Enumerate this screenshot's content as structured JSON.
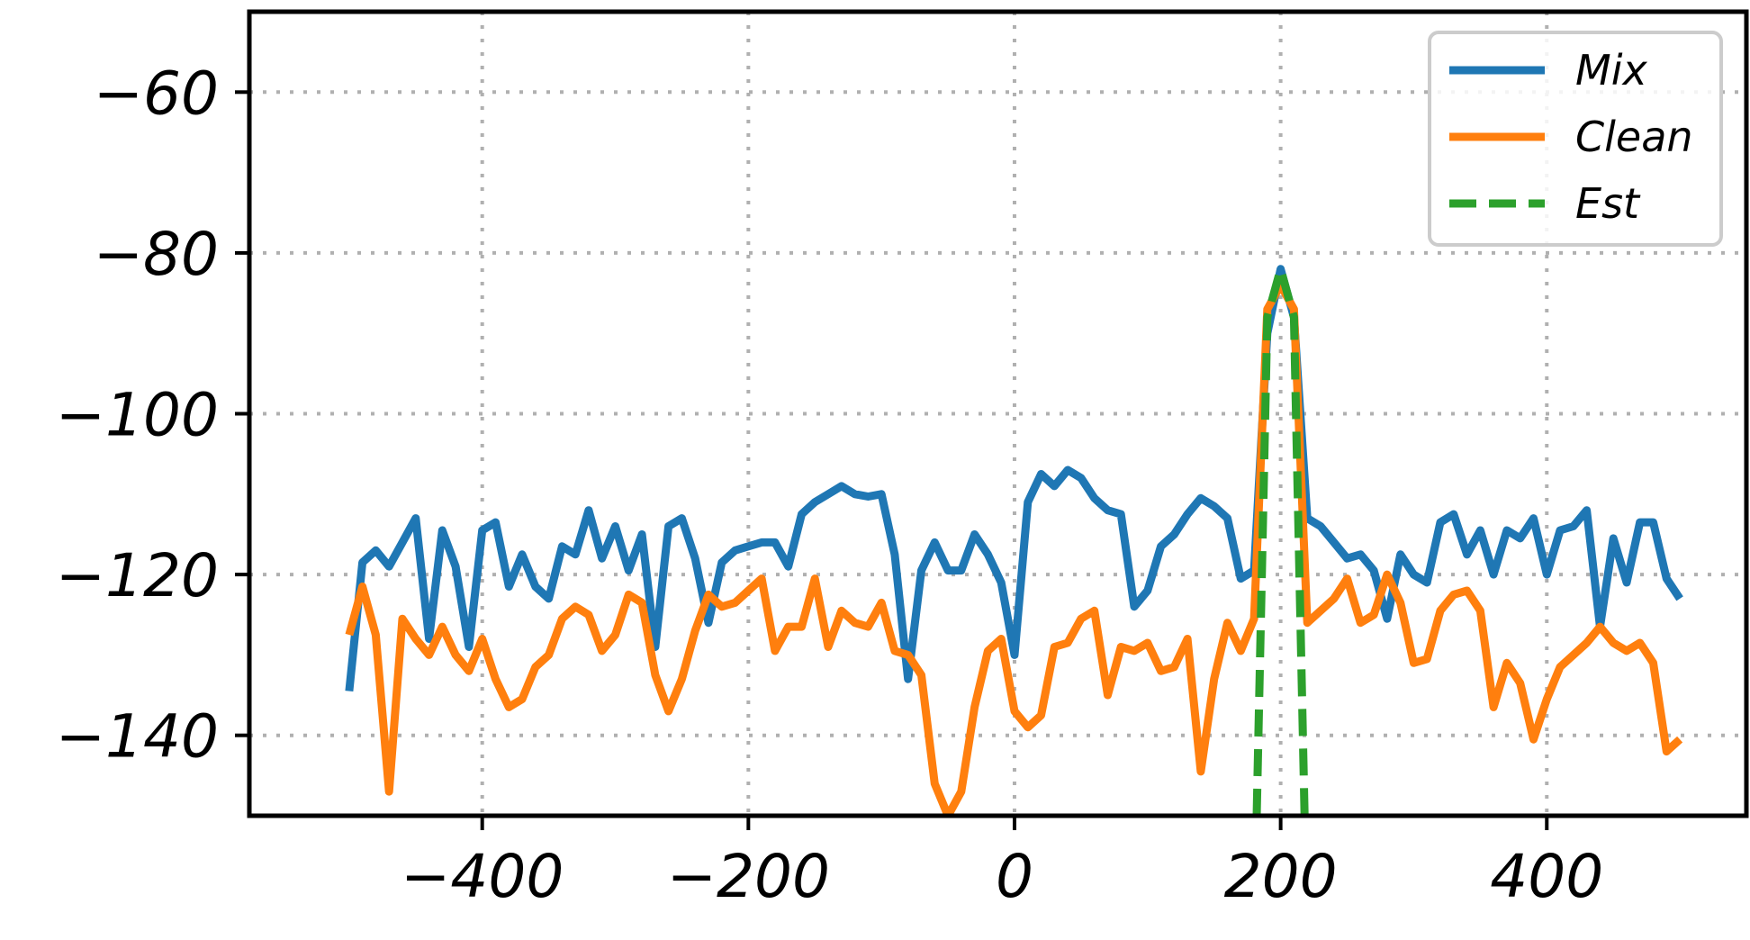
{
  "chart_data": {
    "type": "line",
    "title": "",
    "xlabel": "",
    "ylabel": "",
    "xlim": [
      -575,
      550
    ],
    "ylim": [
      -150,
      -50
    ],
    "xticks": [
      -400,
      -200,
      0,
      200,
      400
    ],
    "yticks": [
      -60,
      -80,
      -100,
      -120,
      -140
    ],
    "xtick_labels": [
      "−400",
      "−200",
      "0",
      "200",
      "400"
    ],
    "ytick_labels": [
      "−60",
      "−80",
      "−100",
      "−120",
      "−140"
    ],
    "grid": true,
    "legend": "top-right",
    "series": [
      {
        "name": "Mix",
        "color": "#1f77b4",
        "style": "solid",
        "points": [
          [
            -500,
            -134.5
          ],
          [
            -490,
            -118.5
          ],
          [
            -480,
            -117
          ],
          [
            -470,
            -119
          ],
          [
            -460,
            -116
          ],
          [
            -450,
            -113
          ],
          [
            -440,
            -128
          ],
          [
            -430,
            -114.5
          ],
          [
            -420,
            -119
          ],
          [
            -410,
            -129
          ],
          [
            -400,
            -114.5
          ],
          [
            -390,
            -113.5
          ],
          [
            -380,
            -121.5
          ],
          [
            -370,
            -117.5
          ],
          [
            -360,
            -121.5
          ],
          [
            -350,
            -123
          ],
          [
            -340,
            -116.5
          ],
          [
            -330,
            -117.5
          ],
          [
            -320,
            -112
          ],
          [
            -310,
            -118
          ],
          [
            -300,
            -114
          ],
          [
            -290,
            -119.5
          ],
          [
            -280,
            -115
          ],
          [
            -270,
            -129
          ],
          [
            -260,
            -114
          ],
          [
            -250,
            -113
          ],
          [
            -240,
            -118
          ],
          [
            -230,
            -126
          ],
          [
            -220,
            -118.5
          ],
          [
            -210,
            -117
          ],
          [
            -200,
            -116.5
          ],
          [
            -190,
            -116
          ],
          [
            -180,
            -116
          ],
          [
            -170,
            -119
          ],
          [
            -160,
            -112.5
          ],
          [
            -150,
            -111
          ],
          [
            -140,
            -110
          ],
          [
            -130,
            -109
          ],
          [
            -120,
            -110
          ],
          [
            -110,
            -110.3
          ],
          [
            -100,
            -110
          ],
          [
            -90,
            -117.5
          ],
          [
            -80,
            -133
          ],
          [
            -70,
            -119.5
          ],
          [
            -60,
            -116
          ],
          [
            -50,
            -119.5
          ],
          [
            -40,
            -119.5
          ],
          [
            -30,
            -115
          ],
          [
            -20,
            -117.5
          ],
          [
            -10,
            -121
          ],
          [
            0,
            -130
          ],
          [
            10,
            -111
          ],
          [
            20,
            -107.5
          ],
          [
            30,
            -109
          ],
          [
            40,
            -107
          ],
          [
            50,
            -108
          ],
          [
            60,
            -110.5
          ],
          [
            70,
            -112
          ],
          [
            80,
            -112.5
          ],
          [
            90,
            -124
          ],
          [
            100,
            -122
          ],
          [
            110,
            -116.5
          ],
          [
            120,
            -115
          ],
          [
            130,
            -112.5
          ],
          [
            140,
            -110.5
          ],
          [
            150,
            -111.5
          ],
          [
            160,
            -113
          ],
          [
            170,
            -120.5
          ],
          [
            180,
            -119.5
          ],
          [
            190,
            -90
          ],
          [
            200,
            -82
          ],
          [
            210,
            -88
          ],
          [
            220,
            -113
          ],
          [
            230,
            -114
          ],
          [
            240,
            -116
          ],
          [
            250,
            -118
          ],
          [
            260,
            -117.5
          ],
          [
            270,
            -119.5
          ],
          [
            280,
            -125.5
          ],
          [
            290,
            -117.5
          ],
          [
            300,
            -120
          ],
          [
            310,
            -121
          ],
          [
            320,
            -113.5
          ],
          [
            330,
            -112.5
          ],
          [
            340,
            -117.5
          ],
          [
            350,
            -114.5
          ],
          [
            360,
            -120
          ],
          [
            370,
            -114.5
          ],
          [
            380,
            -115.5
          ],
          [
            390,
            -113
          ],
          [
            400,
            -120
          ],
          [
            410,
            -114.5
          ],
          [
            420,
            -114
          ],
          [
            430,
            -112
          ],
          [
            440,
            -126.5
          ],
          [
            450,
            -115.5
          ],
          [
            460,
            -121
          ],
          [
            470,
            -113.5
          ],
          [
            480,
            -113.5
          ],
          [
            490,
            -120.5
          ],
          [
            500,
            -123
          ]
        ]
      },
      {
        "name": "Clean",
        "color": "#ff7f0e",
        "style": "solid",
        "points": [
          [
            -500,
            -127.5
          ],
          [
            -490,
            -121.5
          ],
          [
            -480,
            -127.5
          ],
          [
            -470,
            -147
          ],
          [
            -460,
            -125.5
          ],
          [
            -450,
            -128
          ],
          [
            -440,
            -130
          ],
          [
            -430,
            -126.5
          ],
          [
            -420,
            -130
          ],
          [
            -410,
            -132
          ],
          [
            -400,
            -128
          ],
          [
            -390,
            -133
          ],
          [
            -380,
            -136.5
          ],
          [
            -370,
            -135.5
          ],
          [
            -360,
            -131.5
          ],
          [
            -350,
            -130
          ],
          [
            -340,
            -125.5
          ],
          [
            -330,
            -124
          ],
          [
            -320,
            -125
          ],
          [
            -310,
            -129.5
          ],
          [
            -300,
            -127.5
          ],
          [
            -290,
            -122.5
          ],
          [
            -280,
            -123.5
          ],
          [
            -270,
            -132.5
          ],
          [
            -260,
            -137
          ],
          [
            -250,
            -133
          ],
          [
            -240,
            -127
          ],
          [
            -230,
            -122.5
          ],
          [
            -220,
            -124
          ],
          [
            -210,
            -123.5
          ],
          [
            -200,
            -122
          ],
          [
            -190,
            -120.5
          ],
          [
            -180,
            -129.5
          ],
          [
            -170,
            -126.5
          ],
          [
            -160,
            -126.5
          ],
          [
            -150,
            -120.5
          ],
          [
            -140,
            -129
          ],
          [
            -130,
            -124.5
          ],
          [
            -120,
            -126
          ],
          [
            -110,
            -126.5
          ],
          [
            -100,
            -123.5
          ],
          [
            -90,
            -129.5
          ],
          [
            -80,
            -130
          ],
          [
            -70,
            -132.5
          ],
          [
            -60,
            -146
          ],
          [
            -50,
            -150
          ],
          [
            -40,
            -147
          ],
          [
            -30,
            -136.5
          ],
          [
            -20,
            -129.5
          ],
          [
            -10,
            -128
          ],
          [
            0,
            -137
          ],
          [
            10,
            -139
          ],
          [
            20,
            -137.5
          ],
          [
            30,
            -129
          ],
          [
            40,
            -128.5
          ],
          [
            50,
            -125.5
          ],
          [
            60,
            -124.5
          ],
          [
            70,
            -135
          ],
          [
            80,
            -129
          ],
          [
            90,
            -129.5
          ],
          [
            100,
            -128.5
          ],
          [
            110,
            -132
          ],
          [
            120,
            -131.5
          ],
          [
            130,
            -128
          ],
          [
            140,
            -144.5
          ],
          [
            150,
            -133
          ],
          [
            160,
            -126
          ],
          [
            170,
            -129.5
          ],
          [
            180,
            -125.5
          ],
          [
            190,
            -87
          ],
          [
            200,
            -84
          ],
          [
            210,
            -87
          ],
          [
            220,
            -126
          ],
          [
            230,
            -124.5
          ],
          [
            240,
            -123
          ],
          [
            250,
            -120.5
          ],
          [
            260,
            -126
          ],
          [
            270,
            -125
          ],
          [
            280,
            -120
          ],
          [
            290,
            -123.5
          ],
          [
            300,
            -131
          ],
          [
            310,
            -130.5
          ],
          [
            320,
            -124.5
          ],
          [
            330,
            -122.5
          ],
          [
            340,
            -122
          ],
          [
            350,
            -124.5
          ],
          [
            360,
            -136.5
          ],
          [
            370,
            -131
          ],
          [
            380,
            -133.5
          ],
          [
            390,
            -140.5
          ],
          [
            400,
            -135.5
          ],
          [
            410,
            -131.5
          ],
          [
            420,
            -130
          ],
          [
            430,
            -128.5
          ],
          [
            440,
            -126.5
          ],
          [
            450,
            -128.5
          ],
          [
            460,
            -129.5
          ],
          [
            470,
            -128.5
          ],
          [
            480,
            -131
          ],
          [
            490,
            -142
          ],
          [
            500,
            -140.5
          ]
        ]
      },
      {
        "name": "Est",
        "color": "#2ca02c",
        "style": "dashed",
        "points": [
          [
            182,
            -150
          ],
          [
            190,
            -88
          ],
          [
            200,
            -82
          ],
          [
            210,
            -88
          ],
          [
            218,
            -150
          ]
        ]
      }
    ]
  }
}
